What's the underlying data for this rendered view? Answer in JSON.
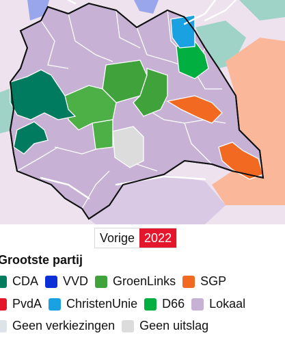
{
  "map": {
    "colors": {
      "water": "#ffffff",
      "outside_bg": "#ede2ee",
      "lokaal": "#c7b2d6",
      "lokaal_light": "#d9c9e4",
      "groenlinks": "#3fa23b",
      "groenlinks_light": "#4cb047",
      "cda": "#007b5f",
      "d66": "#01af40",
      "sgp": "#f26a22",
      "sgp_light": "#fbb79a",
      "christenunie": "#1aa1e2",
      "vvd": "#0d2fd6",
      "vvd_light": "#9aa6ec",
      "teal_light": "#9fd3c7",
      "geen_uitslag": "#dcdcdc",
      "border": "#111111",
      "road": "#ffffff"
    }
  },
  "year_toggle": {
    "previous_label": "Vorige",
    "current_label": "2022"
  },
  "legend": {
    "title": "Grootste partij",
    "items": [
      {
        "label": "CDA",
        "color": "#007b5f"
      },
      {
        "label": "VVD",
        "color": "#0d2fd6"
      },
      {
        "label": "GroenLinks",
        "color": "#3fa23b"
      },
      {
        "label": "SGP",
        "color": "#f26a22"
      },
      {
        "label": "PvdA",
        "color": "#e3162b"
      },
      {
        "label": "ChristenUnie",
        "color": "#1aa1e2"
      },
      {
        "label": "D66",
        "color": "#01af40"
      },
      {
        "label": "Lokaal",
        "color": "#c7b2d6"
      },
      {
        "label": "Geen verkiezingen",
        "color": "#dde3e8"
      },
      {
        "label": "Geen uitslag",
        "color": "#dcdcdc"
      }
    ]
  }
}
